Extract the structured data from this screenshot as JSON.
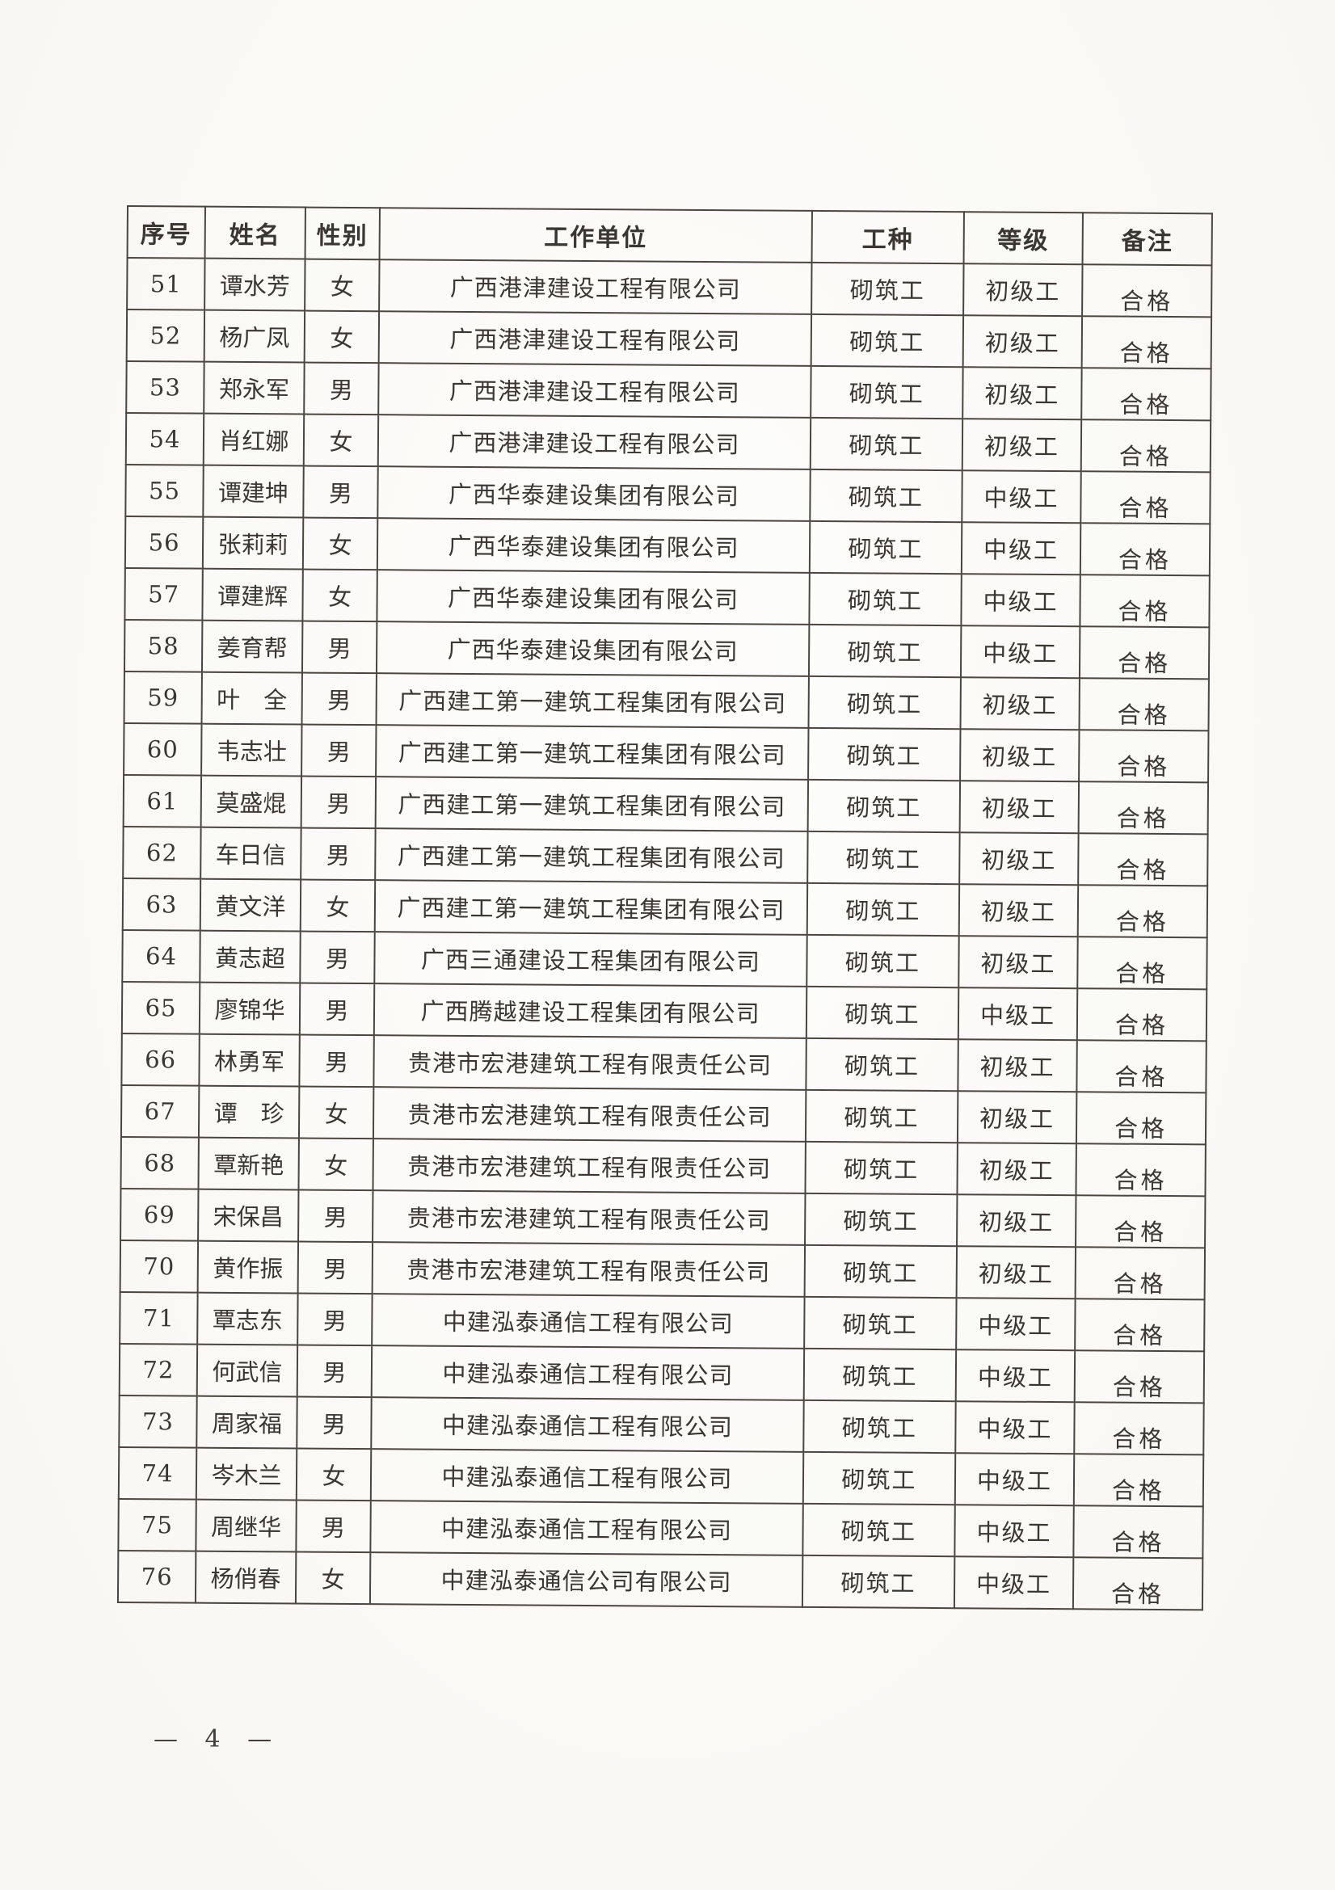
{
  "page": {
    "footer_page_label": "— 4 —"
  },
  "table": {
    "headers": [
      "序号",
      "姓名",
      "性别",
      "工作单位",
      "工种",
      "等级",
      "备注"
    ],
    "rows": [
      {
        "no": "51",
        "name": "谭水芳",
        "gender": "女",
        "company": "广西港津建设工程有限公司",
        "trade": "砌筑工",
        "grade": "初级工",
        "remark": "合格"
      },
      {
        "no": "52",
        "name": "杨广凤",
        "gender": "女",
        "company": "广西港津建设工程有限公司",
        "trade": "砌筑工",
        "grade": "初级工",
        "remark": "合格"
      },
      {
        "no": "53",
        "name": "郑永军",
        "gender": "男",
        "company": "广西港津建设工程有限公司",
        "trade": "砌筑工",
        "grade": "初级工",
        "remark": "合格"
      },
      {
        "no": "54",
        "name": "肖红娜",
        "gender": "女",
        "company": "广西港津建设工程有限公司",
        "trade": "砌筑工",
        "grade": "初级工",
        "remark": "合格"
      },
      {
        "no": "55",
        "name": "谭建坤",
        "gender": "男",
        "company": "广西华泰建设集团有限公司",
        "trade": "砌筑工",
        "grade": "中级工",
        "remark": "合格"
      },
      {
        "no": "56",
        "name": "张莉莉",
        "gender": "女",
        "company": "广西华泰建设集团有限公司",
        "trade": "砌筑工",
        "grade": "中级工",
        "remark": "合格"
      },
      {
        "no": "57",
        "name": "谭建辉",
        "gender": "女",
        "company": "广西华泰建设集团有限公司",
        "trade": "砌筑工",
        "grade": "中级工",
        "remark": "合格"
      },
      {
        "no": "58",
        "name": "姜育帮",
        "gender": "男",
        "company": "广西华泰建设集团有限公司",
        "trade": "砌筑工",
        "grade": "中级工",
        "remark": "合格"
      },
      {
        "no": "59",
        "name": "叶　全",
        "gender": "男",
        "company": "广西建工第一建筑工程集团有限公司",
        "trade": "砌筑工",
        "grade": "初级工",
        "remark": "合格"
      },
      {
        "no": "60",
        "name": "韦志壮",
        "gender": "男",
        "company": "广西建工第一建筑工程集团有限公司",
        "trade": "砌筑工",
        "grade": "初级工",
        "remark": "合格"
      },
      {
        "no": "61",
        "name": "莫盛焜",
        "gender": "男",
        "company": "广西建工第一建筑工程集团有限公司",
        "trade": "砌筑工",
        "grade": "初级工",
        "remark": "合格"
      },
      {
        "no": "62",
        "name": "车日信",
        "gender": "男",
        "company": "广西建工第一建筑工程集团有限公司",
        "trade": "砌筑工",
        "grade": "初级工",
        "remark": "合格"
      },
      {
        "no": "63",
        "name": "黄文洋",
        "gender": "女",
        "company": "广西建工第一建筑工程集团有限公司",
        "trade": "砌筑工",
        "grade": "初级工",
        "remark": "合格"
      },
      {
        "no": "64",
        "name": "黄志超",
        "gender": "男",
        "company": "广西三通建设工程集团有限公司",
        "trade": "砌筑工",
        "grade": "初级工",
        "remark": "合格"
      },
      {
        "no": "65",
        "name": "廖锦华",
        "gender": "男",
        "company": "广西腾越建设工程集团有限公司",
        "trade": "砌筑工",
        "grade": "中级工",
        "remark": "合格"
      },
      {
        "no": "66",
        "name": "林勇军",
        "gender": "男",
        "company": "贵港市宏港建筑工程有限责任公司",
        "trade": "砌筑工",
        "grade": "初级工",
        "remark": "合格"
      },
      {
        "no": "67",
        "name": "谭　珍",
        "gender": "女",
        "company": "贵港市宏港建筑工程有限责任公司",
        "trade": "砌筑工",
        "grade": "初级工",
        "remark": "合格"
      },
      {
        "no": "68",
        "name": "覃新艳",
        "gender": "女",
        "company": "贵港市宏港建筑工程有限责任公司",
        "trade": "砌筑工",
        "grade": "初级工",
        "remark": "合格"
      },
      {
        "no": "69",
        "name": "宋保昌",
        "gender": "男",
        "company": "贵港市宏港建筑工程有限责任公司",
        "trade": "砌筑工",
        "grade": "初级工",
        "remark": "合格"
      },
      {
        "no": "70",
        "name": "黄作振",
        "gender": "男",
        "company": "贵港市宏港建筑工程有限责任公司",
        "trade": "砌筑工",
        "grade": "初级工",
        "remark": "合格"
      },
      {
        "no": "71",
        "name": "覃志东",
        "gender": "男",
        "company": "中建泓泰通信工程有限公司",
        "trade": "砌筑工",
        "grade": "中级工",
        "remark": "合格"
      },
      {
        "no": "72",
        "name": "何武信",
        "gender": "男",
        "company": "中建泓泰通信工程有限公司",
        "trade": "砌筑工",
        "grade": "中级工",
        "remark": "合格"
      },
      {
        "no": "73",
        "name": "周家福",
        "gender": "男",
        "company": "中建泓泰通信工程有限公司",
        "trade": "砌筑工",
        "grade": "中级工",
        "remark": "合格"
      },
      {
        "no": "74",
        "name": "岑木兰",
        "gender": "女",
        "company": "中建泓泰通信工程有限公司",
        "trade": "砌筑工",
        "grade": "中级工",
        "remark": "合格"
      },
      {
        "no": "75",
        "name": "周继华",
        "gender": "男",
        "company": "中建泓泰通信工程有限公司",
        "trade": "砌筑工",
        "grade": "中级工",
        "remark": "合格"
      },
      {
        "no": "76",
        "name": "杨俏春",
        "gender": "女",
        "company": "中建泓泰通信公司有限公司",
        "trade": "砌筑工",
        "grade": "中级工",
        "remark": "合格"
      }
    ]
  }
}
